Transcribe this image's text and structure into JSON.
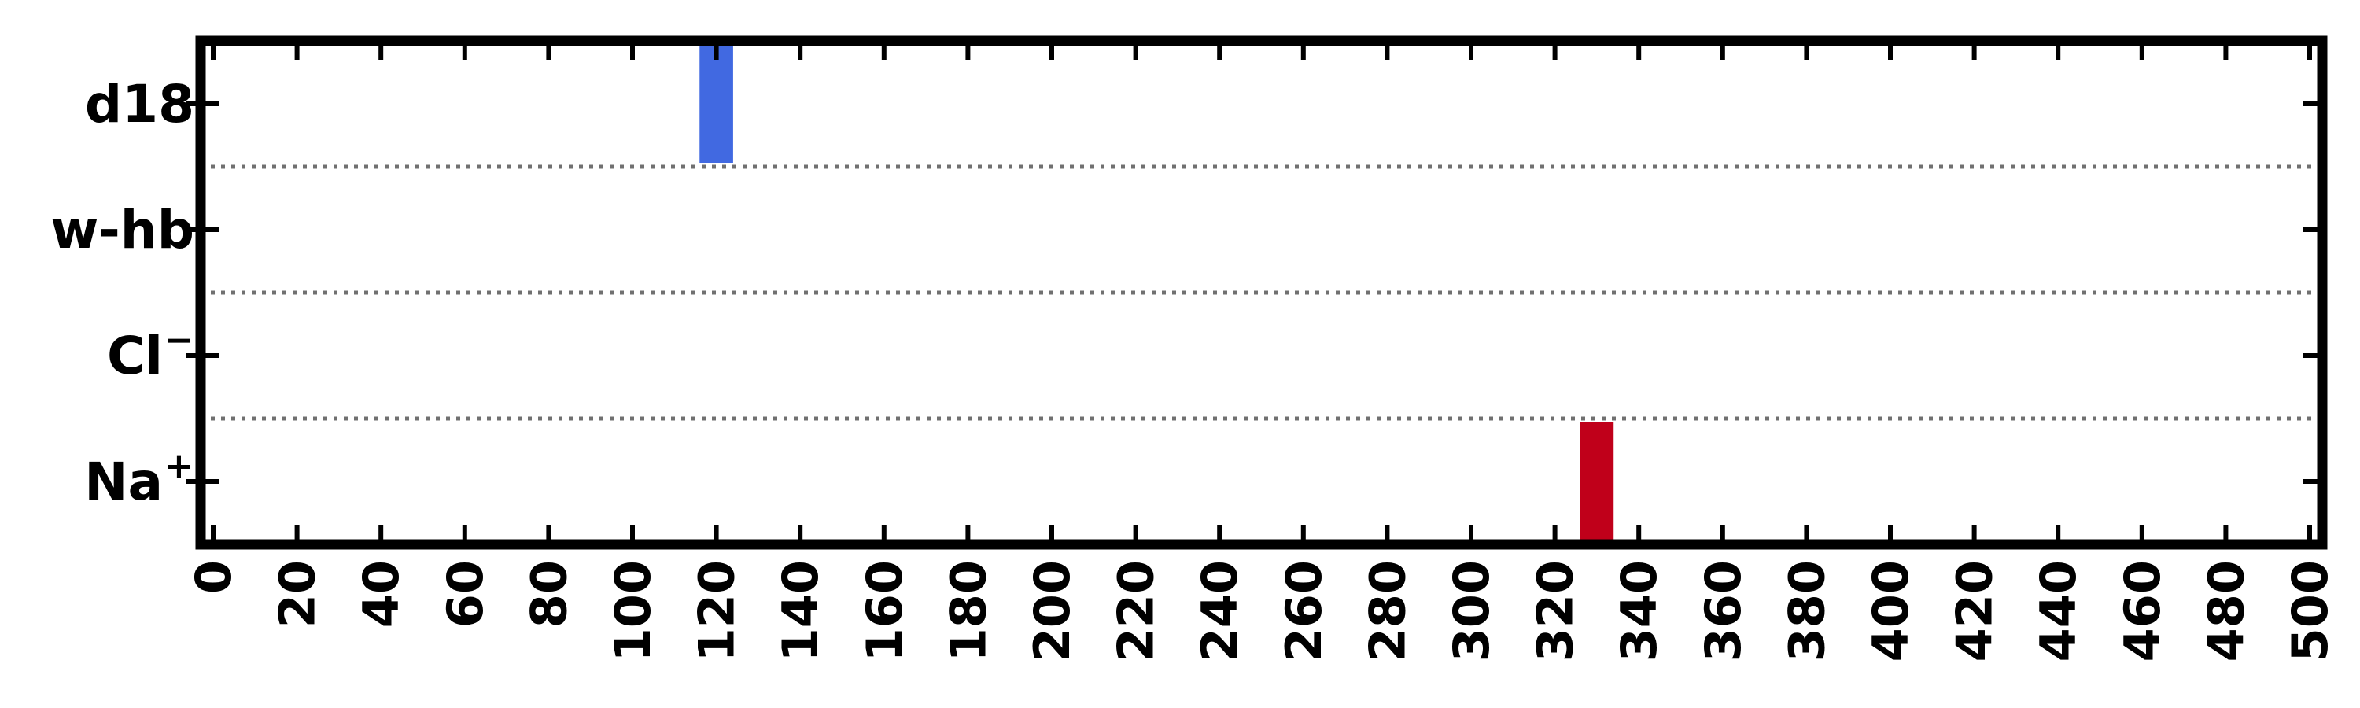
{
  "chart_data": {
    "type": "bar",
    "orientation": "horizontal-event-raster",
    "title": "",
    "xlabel": "",
    "ylabel": "",
    "xlim": [
      -3,
      503
    ],
    "x_ticks": [
      0,
      20,
      40,
      60,
      80,
      100,
      120,
      140,
      160,
      180,
      200,
      220,
      240,
      260,
      280,
      300,
      320,
      340,
      360,
      380,
      400,
      420,
      440,
      460,
      480,
      500
    ],
    "x_tick_labels": [
      "0",
      "20",
      "40",
      "60",
      "80",
      "100",
      "120",
      "140",
      "160",
      "180",
      "200",
      "220",
      "240",
      "260",
      "280",
      "300",
      "320",
      "340",
      "360",
      "380",
      "400",
      "420",
      "440",
      "460",
      "480",
      "500"
    ],
    "categories": [
      {
        "label": "d18",
        "base": "d18",
        "sup": ""
      },
      {
        "label": "w-hb",
        "base": "w-hb",
        "sup": ""
      },
      {
        "label": "Cl−",
        "base": "Cl",
        "sup": "−"
      },
      {
        "label": "Na+",
        "base": "Na",
        "sup": "+"
      }
    ],
    "series": [
      {
        "category": "d18",
        "x_start": 116,
        "x_end": 124,
        "color": "#4169E1"
      },
      {
        "category": "Na+",
        "x_start": 326,
        "x_end": 334,
        "color": "#C0001A"
      }
    ],
    "separators": "dotted",
    "grid": false,
    "legend": "none"
  }
}
